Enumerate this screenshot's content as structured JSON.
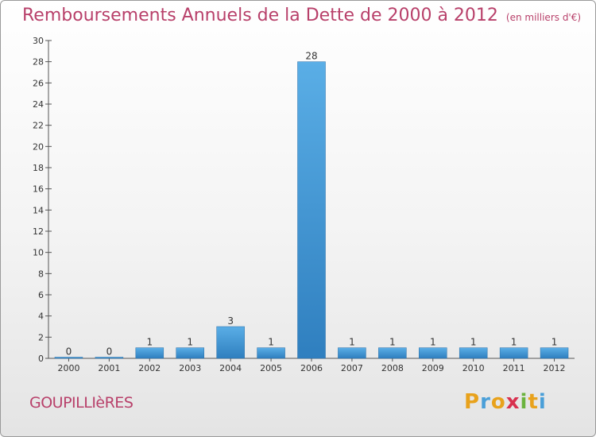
{
  "title": "Remboursements Annuels de la Dette de 2000 à 2012",
  "unit": "(en milliers d'€)",
  "commune": "GOUPILLIèRES",
  "logo_letters": [
    "P",
    "r",
    "o",
    "x",
    "i",
    "t",
    "i"
  ],
  "colors": {
    "title": "#b8406a",
    "bar_light": "#5aaee6",
    "bar_dark": "#2f7fbf"
  },
  "chart_data": {
    "type": "bar",
    "title": "Remboursements Annuels de la Dette de 2000 à 2012",
    "xlabel": "",
    "ylabel": "",
    "categories": [
      "2000",
      "2001",
      "2002",
      "2003",
      "2004",
      "2005",
      "2006",
      "2007",
      "2008",
      "2009",
      "2010",
      "2011",
      "2012"
    ],
    "values": [
      0,
      0,
      1,
      1,
      3,
      1,
      28,
      1,
      1,
      1,
      1,
      1,
      1
    ],
    "ylim": [
      0,
      30
    ],
    "yticks": [
      0,
      2,
      4,
      6,
      8,
      10,
      12,
      14,
      16,
      18,
      20,
      22,
      24,
      26,
      28,
      30
    ],
    "grid": false
  }
}
